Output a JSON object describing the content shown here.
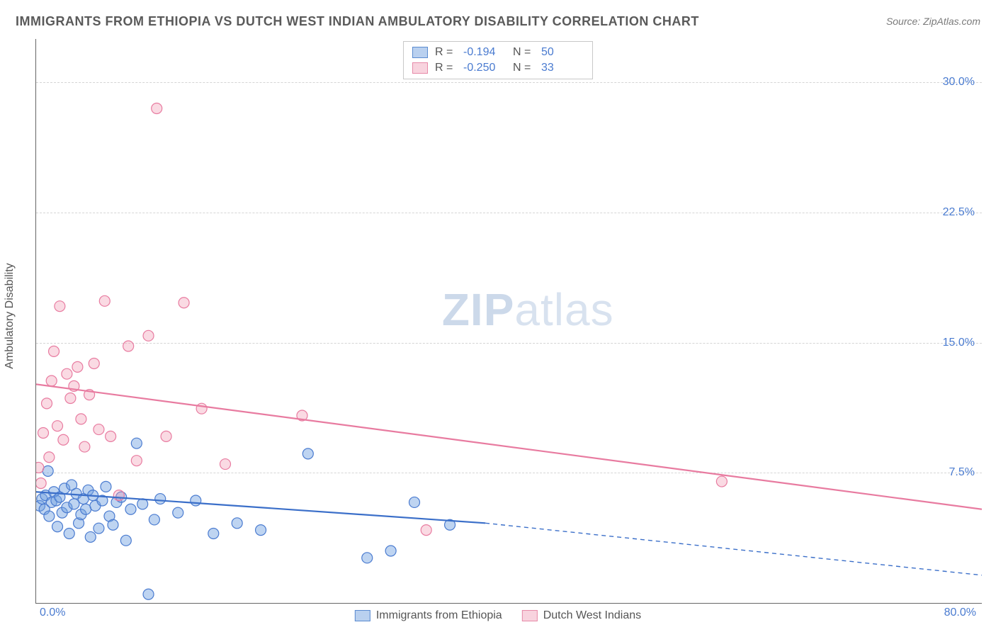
{
  "title": "IMMIGRANTS FROM ETHIOPIA VS DUTCH WEST INDIAN AMBULATORY DISABILITY CORRELATION CHART",
  "source": "Source: ZipAtlas.com",
  "ylabel": "Ambulatory Disability",
  "watermark_a": "ZIP",
  "watermark_b": "atlas",
  "chart": {
    "type": "scatter-with-regression",
    "xlim": [
      0,
      80
    ],
    "ylim": [
      0,
      32.5
    ],
    "ytick_labels": [
      "7.5%",
      "15.0%",
      "22.5%",
      "30.0%"
    ],
    "ytick_values": [
      7.5,
      15.0,
      22.5,
      30.0
    ],
    "xtick_labels": [
      "0.0%",
      "80.0%"
    ],
    "grid_color": "#d5d5d5",
    "background_color": "#ffffff",
    "axis_color": "#666666",
    "label_fontsize": 16,
    "title_fontsize": 18,
    "tick_color": "#4a7bd0",
    "marker_radius": 7.5,
    "series": [
      {
        "name": "Immigrants from Ethiopia",
        "color_fill": "rgba(110,160,225,0.45)",
        "color_stroke": "#4a7bd0",
        "R": "-0.194",
        "N": "50",
        "points": [
          [
            0.3,
            5.6
          ],
          [
            0.5,
            6.0
          ],
          [
            0.7,
            5.4
          ],
          [
            0.8,
            6.2
          ],
          [
            1.0,
            7.6
          ],
          [
            1.1,
            5.0
          ],
          [
            1.3,
            5.8
          ],
          [
            1.5,
            6.4
          ],
          [
            1.7,
            5.9
          ],
          [
            1.8,
            4.4
          ],
          [
            2.0,
            6.1
          ],
          [
            2.2,
            5.2
          ],
          [
            2.4,
            6.6
          ],
          [
            2.6,
            5.5
          ],
          [
            2.8,
            4.0
          ],
          [
            3.0,
            6.8
          ],
          [
            3.2,
            5.7
          ],
          [
            3.4,
            6.3
          ],
          [
            3.6,
            4.6
          ],
          [
            3.8,
            5.1
          ],
          [
            4.0,
            6.0
          ],
          [
            4.2,
            5.4
          ],
          [
            4.4,
            6.5
          ],
          [
            4.6,
            3.8
          ],
          [
            4.8,
            6.2
          ],
          [
            5.0,
            5.6
          ],
          [
            5.3,
            4.3
          ],
          [
            5.6,
            5.9
          ],
          [
            5.9,
            6.7
          ],
          [
            6.2,
            5.0
          ],
          [
            6.5,
            4.5
          ],
          [
            6.8,
            5.8
          ],
          [
            7.2,
            6.1
          ],
          [
            7.6,
            3.6
          ],
          [
            8.0,
            5.4
          ],
          [
            8.5,
            9.2
          ],
          [
            9.0,
            5.7
          ],
          [
            9.5,
            0.5
          ],
          [
            10.0,
            4.8
          ],
          [
            10.5,
            6.0
          ],
          [
            12.0,
            5.2
          ],
          [
            13.5,
            5.9
          ],
          [
            15.0,
            4.0
          ],
          [
            17.0,
            4.6
          ],
          [
            19.0,
            4.2
          ],
          [
            23.0,
            8.6
          ],
          [
            28.0,
            2.6
          ],
          [
            30.0,
            3.0
          ],
          [
            32.0,
            5.8
          ],
          [
            35.0,
            4.5
          ]
        ],
        "regression": {
          "x1": 0,
          "y1": 6.4,
          "x2": 38,
          "y2": 4.6,
          "extend_x2": 80,
          "extend_y2": 1.6
        }
      },
      {
        "name": "Dutch West Indians",
        "color_fill": "rgba(240,150,175,0.35)",
        "color_stroke": "#e87ba0",
        "R": "-0.250",
        "N": "33",
        "points": [
          [
            0.2,
            7.8
          ],
          [
            0.4,
            6.9
          ],
          [
            0.6,
            9.8
          ],
          [
            0.9,
            11.5
          ],
          [
            1.1,
            8.4
          ],
          [
            1.3,
            12.8
          ],
          [
            1.5,
            14.5
          ],
          [
            1.8,
            10.2
          ],
          [
            2.0,
            17.1
          ],
          [
            2.3,
            9.4
          ],
          [
            2.6,
            13.2
          ],
          [
            2.9,
            11.8
          ],
          [
            3.2,
            12.5
          ],
          [
            3.5,
            13.6
          ],
          [
            3.8,
            10.6
          ],
          [
            4.1,
            9.0
          ],
          [
            4.5,
            12.0
          ],
          [
            4.9,
            13.8
          ],
          [
            5.3,
            10.0
          ],
          [
            5.8,
            17.4
          ],
          [
            6.3,
            9.6
          ],
          [
            7.0,
            6.2
          ],
          [
            7.8,
            14.8
          ],
          [
            8.5,
            8.2
          ],
          [
            9.5,
            15.4
          ],
          [
            10.2,
            28.5
          ],
          [
            11.0,
            9.6
          ],
          [
            12.5,
            17.3
          ],
          [
            14.0,
            11.2
          ],
          [
            16.0,
            8.0
          ],
          [
            22.5,
            10.8
          ],
          [
            33.0,
            4.2
          ],
          [
            58.0,
            7.0
          ]
        ],
        "regression": {
          "x1": 0,
          "y1": 12.6,
          "x2": 80,
          "y2": 5.4
        }
      }
    ]
  },
  "legend_top": {
    "r_label": "R =",
    "n_label": "N ="
  },
  "legend_bottom": {
    "items": [
      "Immigrants from Ethiopia",
      "Dutch West Indians"
    ]
  }
}
